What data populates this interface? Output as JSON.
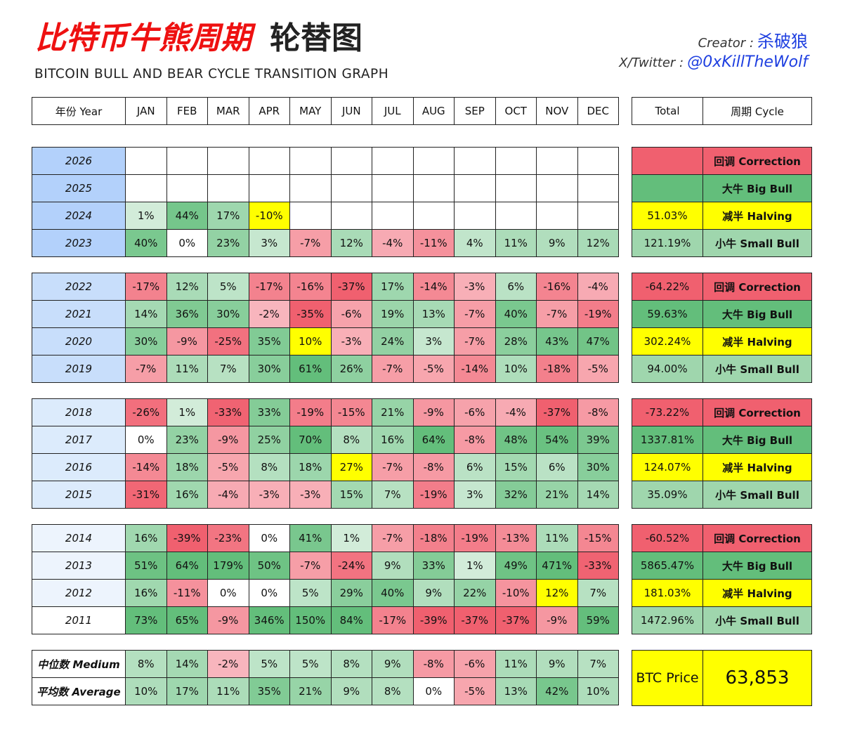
{
  "header": {
    "title_red": "比特币牛熊周期",
    "title_black": "轮替图",
    "subtitle": "BITCOIN BULL AND BEAR CYCLE TRANSITION GRAPH",
    "creator_label": "Creator :",
    "creator_name": "杀破狼",
    "twitter_label": "X/Twitter :",
    "twitter_handle": "@0xKillTheWolf"
  },
  "colors": {
    "year_blue_1": "#b3d1fb",
    "year_blue_2": "#c8defb",
    "year_blue_3": "#dcebfc",
    "year_blue_4": "#edf4fd",
    "dark_green": "#63be7b",
    "light_green": "#d9f0e0",
    "red": "#f0606f",
    "light_red": "#fbd0d5",
    "yellow": "#ffff00",
    "blue_text": "#1e3fe0"
  },
  "chart_data": {
    "type": "table",
    "year_header": "年份 Year",
    "months": [
      "JAN",
      "FEB",
      "MAR",
      "APR",
      "MAY",
      "JUN",
      "JUL",
      "AUG",
      "SEP",
      "OCT",
      "NOV",
      "DEC"
    ],
    "total_header": "Total",
    "cycle_header": "周期 Cycle",
    "groups": [
      {
        "rows": [
          {
            "year": "2026",
            "values": [
              "",
              "",
              "",
              "",
              "",
              "",
              "",
              "",
              "",
              "",
              "",
              ""
            ],
            "total": "",
            "cycle": "回调 Correction",
            "cycle_type": "correction"
          },
          {
            "year": "2025",
            "values": [
              "",
              "",
              "",
              "",
              "",
              "",
              "",
              "",
              "",
              "",
              "",
              ""
            ],
            "total": "",
            "cycle": "大牛 Big Bull",
            "cycle_type": "bigbull"
          },
          {
            "year": "2024",
            "values": [
              "1%",
              "44%",
              "17%",
              "-10%",
              "",
              "",
              "",
              "",
              "",
              "",
              "",
              ""
            ],
            "total": "51.03%",
            "cycle": "减半 Halving",
            "cycle_type": "halving",
            "highlight": [
              3
            ]
          },
          {
            "year": "2023",
            "values": [
              "40%",
              "0%",
              "23%",
              "3%",
              "-7%",
              "12%",
              "-4%",
              "-11%",
              "4%",
              "11%",
              "9%",
              "12%"
            ],
            "total": "121.19%",
            "cycle": "小牛 Small Bull",
            "cycle_type": "smallbull"
          }
        ]
      },
      {
        "rows": [
          {
            "year": "2022",
            "values": [
              "-17%",
              "12%",
              "5%",
              "-17%",
              "-16%",
              "-37%",
              "17%",
              "-14%",
              "-3%",
              "6%",
              "-16%",
              "-4%"
            ],
            "total": "-64.22%",
            "cycle": "回调 Correction",
            "cycle_type": "correction"
          },
          {
            "year": "2021",
            "values": [
              "14%",
              "36%",
              "30%",
              "-2%",
              "-35%",
              "-6%",
              "19%",
              "13%",
              "-7%",
              "40%",
              "-7%",
              "-19%"
            ],
            "total": "59.63%",
            "cycle": "大牛 Big Bull",
            "cycle_type": "bigbull"
          },
          {
            "year": "2020",
            "values": [
              "30%",
              "-9%",
              "-25%",
              "35%",
              "10%",
              "-3%",
              "24%",
              "3%",
              "-7%",
              "28%",
              "43%",
              "47%"
            ],
            "total": "302.24%",
            "cycle": "减半 Halving",
            "cycle_type": "halving",
            "highlight": [
              4
            ]
          },
          {
            "year": "2019",
            "values": [
              "-7%",
              "11%",
              "7%",
              "30%",
              "61%",
              "26%",
              "-7%",
              "-5%",
              "-14%",
              "10%",
              "-18%",
              "-5%"
            ],
            "total": "94.00%",
            "cycle": "小牛 Small Bull",
            "cycle_type": "smallbull"
          }
        ]
      },
      {
        "rows": [
          {
            "year": "2018",
            "values": [
              "-26%",
              "1%",
              "-33%",
              "33%",
              "-19%",
              "-15%",
              "21%",
              "-9%",
              "-6%",
              "-4%",
              "-37%",
              "-8%"
            ],
            "total": "-73.22%",
            "cycle": "回调 Correction",
            "cycle_type": "correction"
          },
          {
            "year": "2017",
            "values": [
              "0%",
              "23%",
              "-9%",
              "25%",
              "70%",
              "8%",
              "16%",
              "64%",
              "-8%",
              "48%",
              "54%",
              "39%"
            ],
            "total": "1337.81%",
            "cycle": "大牛 Big Bull",
            "cycle_type": "bigbull"
          },
          {
            "year": "2016",
            "values": [
              "-14%",
              "18%",
              "-5%",
              "8%",
              "18%",
              "27%",
              "-7%",
              "-8%",
              "6%",
              "15%",
              "6%",
              "30%"
            ],
            "total": "124.07%",
            "cycle": "减半 Halving",
            "cycle_type": "halving",
            "highlight": [
              5
            ]
          },
          {
            "year": "2015",
            "values": [
              "-31%",
              "16%",
              "-4%",
              "-3%",
              "-3%",
              "15%",
              "7%",
              "-19%",
              "3%",
              "32%",
              "21%",
              "14%"
            ],
            "total": "35.09%",
            "cycle": "小牛 Small Bull",
            "cycle_type": "smallbull"
          }
        ]
      },
      {
        "rows": [
          {
            "year": "2014",
            "values": [
              "16%",
              "-39%",
              "-23%",
              "0%",
              "41%",
              "1%",
              "-7%",
              "-18%",
              "-19%",
              "-13%",
              "11%",
              "-15%"
            ],
            "total": "-60.52%",
            "cycle": "回调 Correction",
            "cycle_type": "correction"
          },
          {
            "year": "2013",
            "values": [
              "51%",
              "64%",
              "179%",
              "50%",
              "-7%",
              "-24%",
              "9%",
              "33%",
              "1%",
              "49%",
              "471%",
              "-33%"
            ],
            "total": "5865.47%",
            "cycle": "大牛 Big Bull",
            "cycle_type": "bigbull"
          },
          {
            "year": "2012",
            "values": [
              "16%",
              "-11%",
              "0%",
              "0%",
              "5%",
              "29%",
              "40%",
              "9%",
              "22%",
              "-10%",
              "12%",
              "7%"
            ],
            "total": "181.03%",
            "cycle": "减半 Halving",
            "cycle_type": "halving",
            "highlight": [
              10
            ]
          },
          {
            "year": "2011",
            "values": [
              "73%",
              "65%",
              "-9%",
              "346%",
              "150%",
              "84%",
              "-17%",
              "-39%",
              "-37%",
              "-37%",
              "-9%",
              "59%"
            ],
            "total": "1472.96%",
            "cycle": "小牛 Small Bull",
            "cycle_type": "smallbull"
          }
        ]
      }
    ],
    "stats": [
      {
        "label": "中位数 Medium",
        "values": [
          "8%",
          "14%",
          "-2%",
          "5%",
          "5%",
          "8%",
          "9%",
          "-8%",
          "-6%",
          "11%",
          "9%",
          "7%"
        ]
      },
      {
        "label": "平均数 Average",
        "values": [
          "10%",
          "17%",
          "11%",
          "35%",
          "21%",
          "9%",
          "8%",
          "0%",
          "-5%",
          "13%",
          "42%",
          "10%"
        ]
      }
    ],
    "btc_label": "BTC Price",
    "btc_price": "63,853"
  }
}
